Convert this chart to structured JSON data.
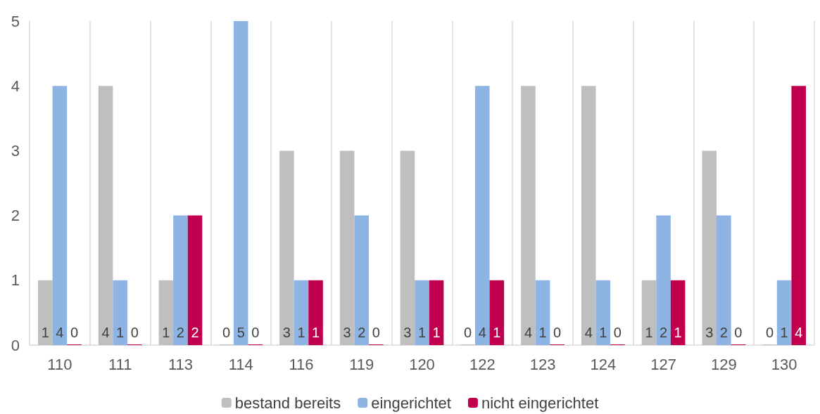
{
  "chart_data": {
    "type": "bar",
    "categories": [
      "110",
      "111",
      "113",
      "114",
      "116",
      "119",
      "120",
      "122",
      "123",
      "124",
      "127",
      "129",
      "130"
    ],
    "series": [
      {
        "name": "bestand bereits",
        "color": "#bfbfbf",
        "values": [
          1,
          4,
          1,
          0,
          3,
          3,
          3,
          0,
          4,
          4,
          1,
          3,
          0
        ]
      },
      {
        "name": "eingerichtet",
        "color": "#8eb4e3",
        "values": [
          4,
          1,
          2,
          5,
          1,
          2,
          1,
          4,
          1,
          1,
          2,
          2,
          1
        ]
      },
      {
        "name": "nicht eingerichtet",
        "color": "#c0004f",
        "values": [
          0,
          0,
          2,
          0,
          1,
          0,
          1,
          1,
          0,
          0,
          1,
          0,
          4
        ]
      }
    ],
    "ylim": [
      0,
      5
    ],
    "yticks": [
      0,
      1,
      2,
      3,
      4,
      5
    ],
    "grid": "x",
    "legend": "bottom",
    "data_labels": true
  }
}
